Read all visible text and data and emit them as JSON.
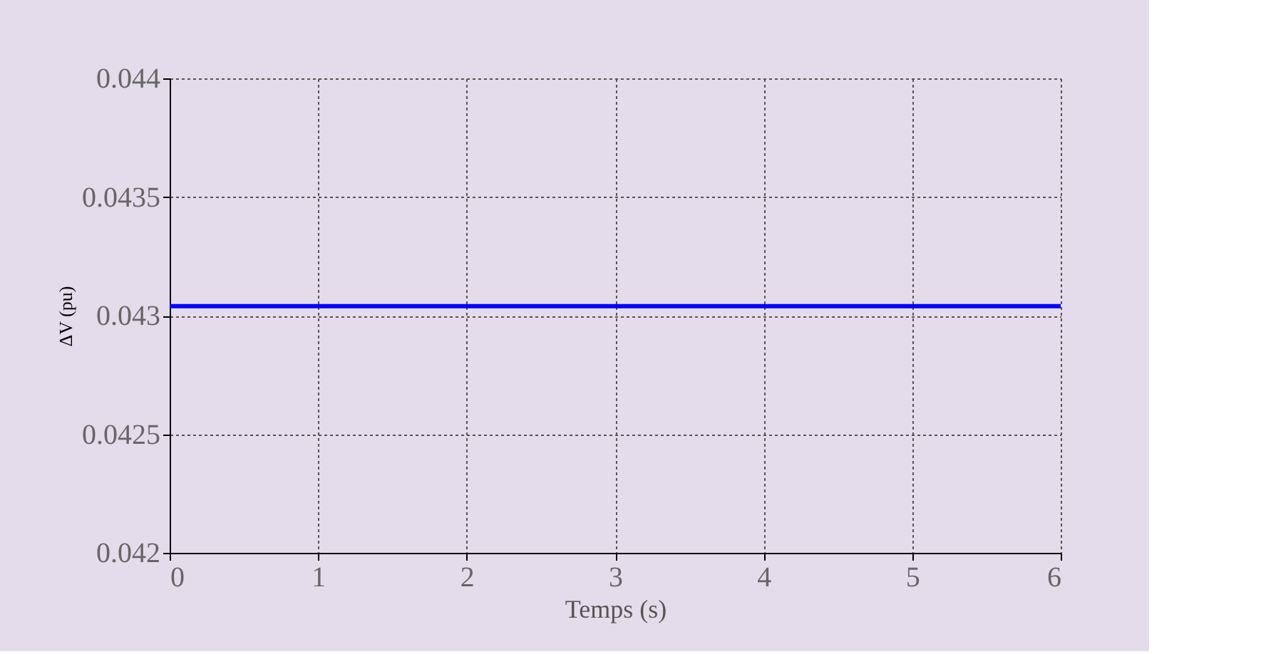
{
  "chart_data": {
    "type": "line",
    "xlabel": "Temps (s)",
    "ylabel": "ΔV (pu)",
    "x": [
      0,
      6
    ],
    "series": [
      {
        "color": "#0000ff",
        "values": [
          0.04304,
          0.04304
        ]
      }
    ],
    "xlim": [
      0,
      6
    ],
    "ylim": [
      0.042,
      0.044
    ],
    "xticks": [
      0,
      1,
      2,
      3,
      4,
      5,
      6
    ],
    "yticks": [
      0.042,
      0.0425,
      0.043,
      0.0435,
      0.044
    ],
    "grid": true,
    "line_style": "solid",
    "legend": false
  }
}
